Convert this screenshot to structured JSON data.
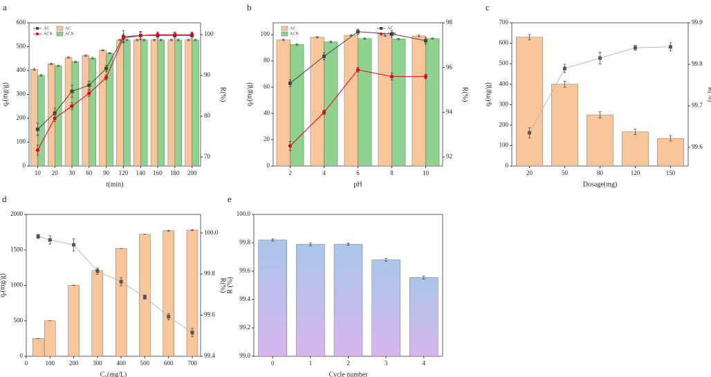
{
  "chart_data": [
    {
      "type": "bar_line",
      "panel_label": "a",
      "x_label": "t(min)",
      "y_label": "qₑ(mg/g)",
      "y2_label": "R(%)",
      "legend": "upper left",
      "categories": [
        "10",
        "20",
        "30",
        "60",
        "90",
        "120",
        "140",
        "160",
        "180",
        "200"
      ],
      "ylim": [
        0,
        600
      ],
      "yticks": [
        0,
        100,
        200,
        300,
        400,
        500,
        600
      ],
      "y2lim": [
        67.8,
        102.9
      ],
      "y2ticks": [
        70,
        80,
        90,
        100
      ],
      "series": [
        {
          "name": "AC",
          "type": "bar",
          "color": "#f9c59a",
          "values": [
            405,
            428,
            455,
            463,
            485,
            528,
            528,
            528,
            528,
            528
          ],
          "errors": [
            4,
            3,
            3,
            3,
            2,
            3,
            3,
            3,
            3,
            3
          ]
        },
        {
          "name": "ACN",
          "type": "bar",
          "color": "#8fd18f",
          "values": [
            380,
            420,
            437,
            452,
            473,
            528,
            528,
            528,
            528,
            528
          ],
          "errors": [
            3,
            3,
            3,
            3,
            2,
            3,
            3,
            3,
            3,
            3
          ]
        },
        {
          "name": "AC",
          "type": "line",
          "axis": "y2",
          "marker": "square",
          "color": "#444444",
          "line_color": "#444444",
          "values": [
            76.8,
            80.8,
            86.1,
            87.6,
            91.7,
            99.5,
            99.8,
            99.8,
            99.8,
            99.8
          ],
          "errors": [
            1.5,
            1.2,
            1.5,
            1,
            0.8,
            1.5,
            1,
            0.8,
            0.8,
            0.8
          ]
        },
        {
          "name": "ACN",
          "type": "line",
          "axis": "y2",
          "marker": "circle",
          "color": "#e3001b",
          "line_color": "#e3001b",
          "values": [
            71.7,
            79.5,
            82.5,
            85.6,
            89.5,
            99.2,
            99.8,
            100,
            100,
            100
          ],
          "errors": [
            1.2,
            0.8,
            0.8,
            0.7,
            0.6,
            1,
            0.8,
            0.6,
            0.6,
            0.5
          ]
        }
      ]
    },
    {
      "type": "bar_line",
      "panel_label": "b",
      "x_label": "pH",
      "y_label": "qₑ(mg/g)",
      "y2_label": "R(%)",
      "legend": "upper center",
      "categories": [
        "2",
        "4",
        "6",
        "8",
        "10"
      ],
      "ylim": [
        0,
        109
      ],
      "yticks": [
        0,
        20,
        40,
        60,
        80,
        100
      ],
      "y2lim": [
        91.6,
        98
      ],
      "y2ticks": [
        92,
        94,
        96,
        98
      ],
      "series": [
        {
          "name": "AC",
          "type": "bar",
          "color": "#f9c59a",
          "values": [
            96,
            98,
            99.5,
            99.3,
            99
          ],
          "errors": [
            0.6,
            0.5,
            0.5,
            0.6,
            0.6
          ]
        },
        {
          "name": "ACN",
          "type": "bar",
          "color": "#8fd18f",
          "values": [
            92.5,
            94.5,
            97,
            96.7,
            97
          ],
          "errors": [
            0.6,
            0.5,
            0.5,
            0.5,
            0.5
          ]
        },
        {
          "name": "AC",
          "type": "line",
          "axis": "y2",
          "marker": "square",
          "color": "#444444",
          "line_color": "#444444",
          "values": [
            95.3,
            96.5,
            97.6,
            97.5,
            97.2
          ],
          "errors": [
            0.15,
            0.15,
            0.12,
            0.15,
            0.15
          ]
        },
        {
          "name": "ACN",
          "type": "line",
          "axis": "y2",
          "marker": "circle",
          "color": "#e3001b",
          "line_color": "#e3001b",
          "values": [
            92.5,
            94,
            95.9,
            95.6,
            95.6
          ],
          "errors": [
            0.2,
            0.1,
            0.1,
            0.15,
            0.1
          ]
        }
      ]
    },
    {
      "type": "bar_line",
      "panel_label": "c",
      "x_label": "Dosage(mg)",
      "y_label": "qₑ(mg/g)",
      "y2_label": "R(%)",
      "categories": [
        "20",
        "50",
        "80",
        "120",
        "150"
      ],
      "ylim": [
        0,
        700
      ],
      "yticks": [
        0,
        100,
        200,
        300,
        400,
        500,
        600,
        700
      ],
      "y2lim": [
        99.555,
        99.9
      ],
      "y2ticks": [
        99.6,
        99.7,
        99.8,
        99.9
      ],
      "series": [
        {
          "type": "bar",
          "color": "#f9c59a",
          "values": [
            630,
            400,
            250,
            167,
            135
          ],
          "errors": [
            13,
            15,
            15,
            13,
            13
          ]
        },
        {
          "type": "line",
          "axis": "y2",
          "marker": "square",
          "color": "#555555",
          "line_color": "#bbbbbb",
          "values": [
            99.635,
            99.79,
            99.815,
            99.84,
            99.842
          ],
          "errors": [
            0.012,
            0.01,
            0.014,
            0.006,
            0.01
          ]
        }
      ]
    },
    {
      "type": "bar_line",
      "panel_label": "d",
      "x_label": "C₀(mg/L)",
      "y_label": "qₑ(mg/g)",
      "y2_label": "R(%)",
      "x": [
        50,
        100,
        200,
        300,
        400,
        500,
        600,
        700
      ],
      "xlim": [
        0,
        735
      ],
      "xticks": [
        0,
        100,
        200,
        300,
        400,
        500,
        600,
        700
      ],
      "ylim": [
        0,
        2000
      ],
      "yticks": [
        0,
        500,
        1000,
        1500,
        2000
      ],
      "y2lim": [
        99.4,
        100.09
      ],
      "y2ticks": [
        99.4,
        99.6,
        99.8,
        {
          "value": 100,
          "label": "100.0"
        }
      ],
      "series": [
        {
          "type": "bar",
          "color": "#f9c59a",
          "values": [
            250,
            500,
            1000,
            1210,
            1520,
            1720,
            1770,
            1780
          ],
          "errors": [
            0,
            0,
            0,
            15,
            0,
            0,
            5,
            5
          ]
        },
        {
          "type": "line",
          "axis": "y2",
          "marker": "square",
          "color": "#555555",
          "line_color": "#bbbbbb",
          "values": [
            99.983,
            99.966,
            99.942,
            99.814,
            99.763,
            99.688,
            99.593,
            99.515
          ],
          "errors": [
            0.01,
            0.02,
            0.03,
            0.015,
            0.02,
            0.01,
            0.015,
            0.02
          ]
        }
      ]
    },
    {
      "type": "bar_line",
      "panel_label": "e",
      "x_label": "Cycle number",
      "y_label": "R (%)",
      "categories": [
        "0",
        "1",
        "2",
        "3",
        "4"
      ],
      "ylim": [
        99,
        100
      ],
      "yticks": [
        {
          "value": 99,
          "label": "99.0"
        },
        99.2,
        99.4,
        99.6,
        99.8,
        {
          "value": 100,
          "label": "100.0"
        }
      ],
      "series": [
        {
          "type": "bar",
          "gradient": [
            "#a9c6e8",
            "#d8b6ee"
          ],
          "values": [
            99.82,
            99.79,
            99.79,
            99.68,
            99.555
          ],
          "errors": [
            0.008,
            0.01,
            0.008,
            0.01,
            0.01
          ]
        }
      ]
    }
  ]
}
